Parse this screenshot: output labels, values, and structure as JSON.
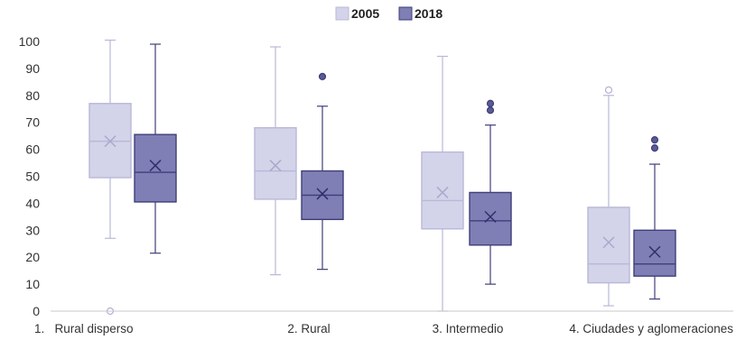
{
  "chart_data": {
    "type": "boxplot",
    "title": "",
    "xlabel": "",
    "ylabel": "",
    "ylim": [
      0,
      100
    ],
    "yticks": [
      0,
      10,
      20,
      30,
      40,
      50,
      60,
      70,
      80,
      90,
      100
    ],
    "legend": {
      "position": "top-center"
    },
    "grid": false,
    "categories": [
      "1.   Rural disperso",
      "2. Rural",
      "3. Intermedio",
      "4. Ciudades y aglomeraciones"
    ],
    "series": [
      {
        "name": "2005",
        "color": "#d3d3ea",
        "stroke": "#b8b8d8",
        "boxes": [
          {
            "whisker_low": 27,
            "q1": 49.5,
            "median": 63,
            "q3": 77,
            "whisker_high": 100.5,
            "mean": 63,
            "outliers": [
              0
            ]
          },
          {
            "whisker_low": 13.5,
            "q1": 41.5,
            "median": 52,
            "q3": 68,
            "whisker_high": 98,
            "mean": 54,
            "outliers": []
          },
          {
            "whisker_low": 0,
            "q1": 30.5,
            "median": 41,
            "q3": 59,
            "whisker_high": 94.5,
            "mean": 44,
            "outliers": []
          },
          {
            "whisker_low": 2,
            "q1": 10.5,
            "median": 17.5,
            "q3": 38.5,
            "whisker_high": 80,
            "mean": 25.5,
            "outliers": [
              82
            ]
          }
        ]
      },
      {
        "name": "2018",
        "color": "#7f7fb5",
        "stroke": "#3e3e7a",
        "boxes": [
          {
            "whisker_low": 21.5,
            "q1": 40.5,
            "median": 51.5,
            "q3": 65.5,
            "whisker_high": 99,
            "mean": 54,
            "outliers": []
          },
          {
            "whisker_low": 15.5,
            "q1": 34,
            "median": 43,
            "q3": 52,
            "whisker_high": 76,
            "mean": 43.5,
            "outliers": [
              87
            ]
          },
          {
            "whisker_low": 10,
            "q1": 24.5,
            "median": 33.5,
            "q3": 44,
            "whisker_high": 69,
            "mean": 35,
            "outliers": [
              74.5,
              77
            ]
          },
          {
            "whisker_low": 4.5,
            "q1": 13,
            "median": 17.5,
            "q3": 30,
            "whisker_high": 54.5,
            "mean": 22,
            "outliers": [
              60.5,
              63.5
            ]
          }
        ]
      }
    ]
  },
  "header_fragment": ""
}
